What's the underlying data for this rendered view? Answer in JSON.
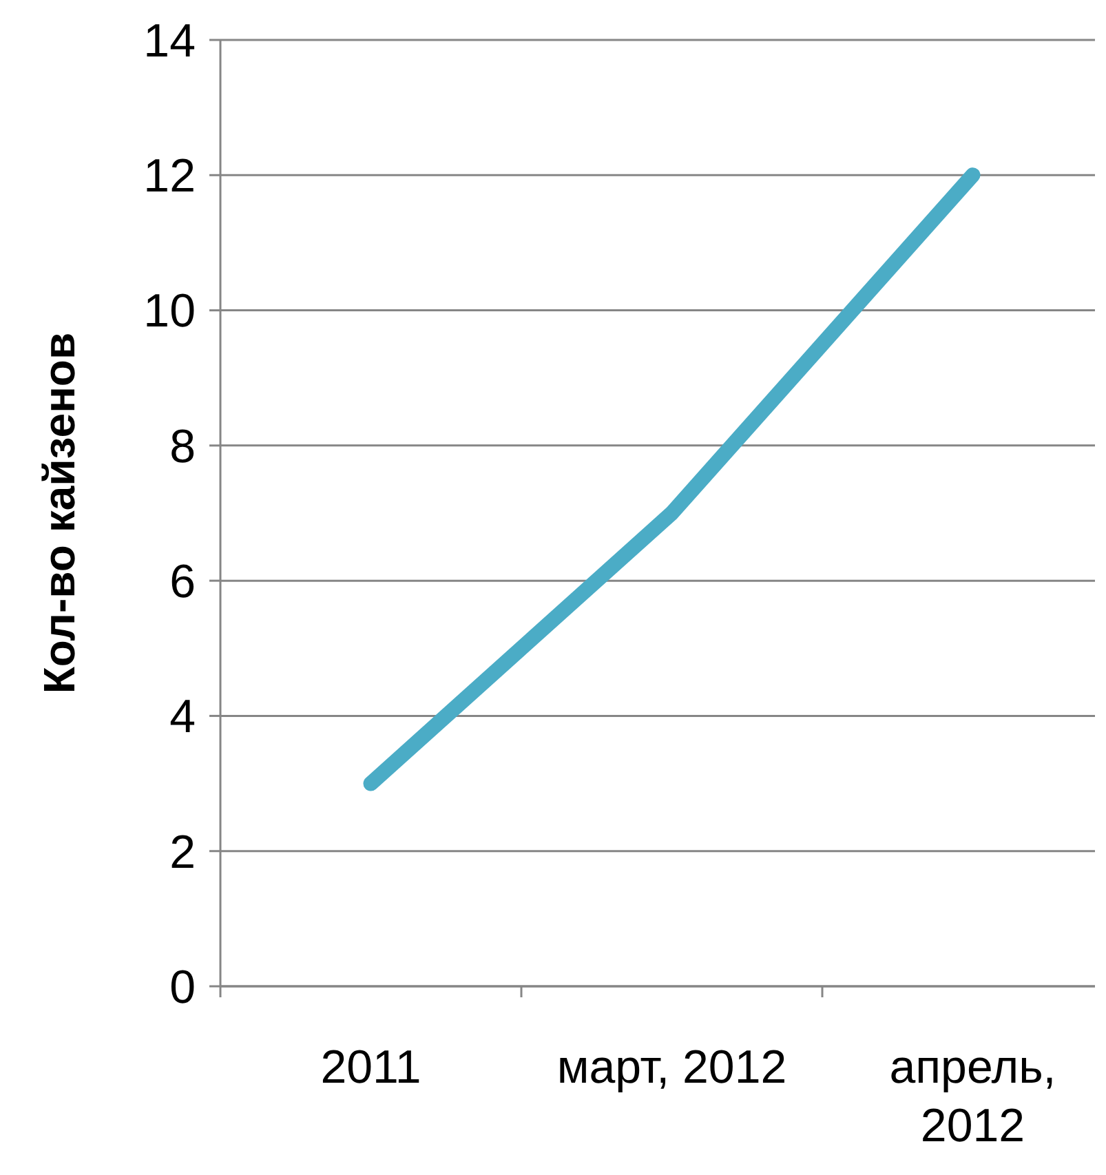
{
  "chart_data": {
    "type": "line",
    "ylabel": "Кол-во кайзенов",
    "categories": [
      "2011",
      "март, 2012",
      "апрель, 2012"
    ],
    "series": [
      {
        "color": "#4bacc6",
        "values": [
          3,
          7,
          12
        ]
      }
    ],
    "ylim": [
      0,
      14
    ],
    "yticks": [
      0,
      2,
      4,
      6,
      8,
      10,
      12,
      14
    ],
    "grid": "y"
  }
}
